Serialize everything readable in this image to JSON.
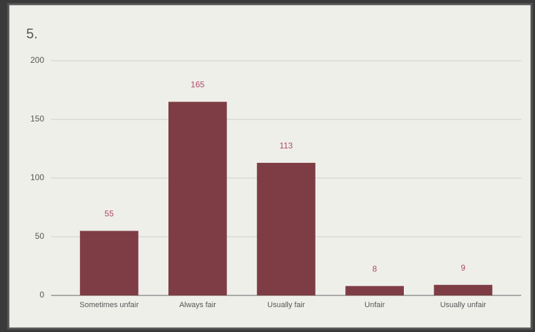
{
  "chart_data": {
    "type": "bar",
    "title": "5.",
    "categories": [
      "Sometimes unfair",
      "Always fair",
      "Usually fair",
      "Unfair",
      "Usually unfair"
    ],
    "values": [
      55,
      165,
      113,
      8,
      9
    ],
    "color": "#7e3d44",
    "label_color": "#b0486a",
    "ylim": [
      0,
      200
    ],
    "yticks": [
      0,
      50,
      100,
      150,
      200
    ],
    "grid": true
  }
}
